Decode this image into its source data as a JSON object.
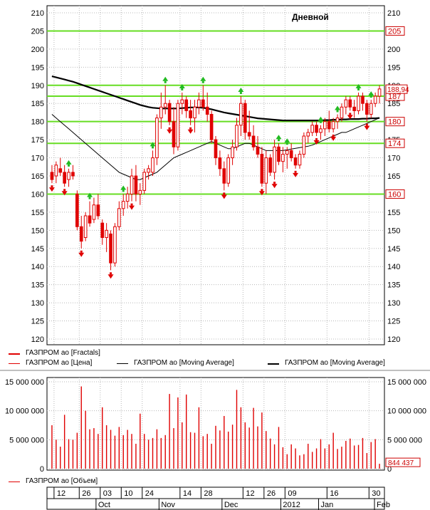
{
  "chart_data": {
    "type": "line",
    "title": "Дневной",
    "ticker": "ГАЗПРОМ ао",
    "price_axis": {
      "min": 120,
      "max": 210,
      "ticks": [
        120,
        125,
        130,
        135,
        140,
        145,
        150,
        155,
        160,
        165,
        170,
        175,
        180,
        185,
        190,
        195,
        200,
        205,
        210
      ]
    },
    "horizontal_levels": [
      {
        "value": 205,
        "label": "205"
      },
      {
        "value": 190,
        "label": ""
      },
      {
        "value": 187,
        "label": "187"
      },
      {
        "value": 180,
        "label": "180"
      },
      {
        "value": 174,
        "label": "174"
      },
      {
        "value": 160,
        "label": "160"
      }
    ],
    "last_price": {
      "value": 188.94,
      "label": "188,94"
    },
    "candles": [
      {
        "o": 166,
        "h": 168,
        "l": 163,
        "c": 164
      },
      {
        "o": 165,
        "h": 169,
        "l": 163,
        "c": 168
      },
      {
        "o": 167,
        "h": 170,
        "l": 165,
        "c": 166
      },
      {
        "o": 166,
        "h": 168,
        "l": 162,
        "c": 163
      },
      {
        "o": 164,
        "h": 167,
        "l": 162,
        "c": 166
      },
      {
        "o": 166,
        "h": 168,
        "l": 164,
        "c": 165
      },
      {
        "o": 160,
        "h": 161,
        "l": 150,
        "c": 151
      },
      {
        "o": 151,
        "h": 154,
        "l": 145,
        "c": 147
      },
      {
        "o": 148,
        "h": 155,
        "l": 147,
        "c": 154
      },
      {
        "o": 154,
        "h": 158,
        "l": 151,
        "c": 152
      },
      {
        "o": 153,
        "h": 159,
        "l": 152,
        "c": 157
      },
      {
        "o": 157,
        "h": 160,
        "l": 153,
        "c": 154
      },
      {
        "o": 152,
        "h": 153,
        "l": 146,
        "c": 148
      },
      {
        "o": 148,
        "h": 152,
        "l": 144,
        "c": 150
      },
      {
        "o": 149,
        "h": 150,
        "l": 139,
        "c": 141
      },
      {
        "o": 141,
        "h": 152,
        "l": 140,
        "c": 151
      },
      {
        "o": 151,
        "h": 158,
        "l": 150,
        "c": 156
      },
      {
        "o": 156,
        "h": 160,
        "l": 154,
        "c": 158
      },
      {
        "o": 158,
        "h": 162,
        "l": 156,
        "c": 160
      },
      {
        "o": 160,
        "h": 167,
        "l": 158,
        "c": 165
      },
      {
        "o": 165,
        "h": 168,
        "l": 158,
        "c": 160
      },
      {
        "o": 160,
        "h": 163,
        "l": 157,
        "c": 161
      },
      {
        "o": 161,
        "h": 167,
        "l": 160,
        "c": 166
      },
      {
        "o": 166,
        "h": 168,
        "l": 164,
        "c": 167
      },
      {
        "o": 166,
        "h": 172,
        "l": 165,
        "c": 170
      },
      {
        "o": 170,
        "h": 182,
        "l": 168,
        "c": 181
      },
      {
        "o": 181,
        "h": 188,
        "l": 178,
        "c": 184
      },
      {
        "o": 184,
        "h": 190,
        "l": 182,
        "c": 185
      },
      {
        "o": 185,
        "h": 186,
        "l": 179,
        "c": 180
      },
      {
        "o": 180,
        "h": 184,
        "l": 171,
        "c": 173
      },
      {
        "o": 173,
        "h": 186,
        "l": 172,
        "c": 185
      },
      {
        "o": 185,
        "h": 188,
        "l": 182,
        "c": 186
      },
      {
        "o": 186,
        "h": 187,
        "l": 181,
        "c": 183
      },
      {
        "o": 183,
        "h": 186,
        "l": 179,
        "c": 181
      },
      {
        "o": 181,
        "h": 186,
        "l": 177,
        "c": 184
      },
      {
        "o": 184,
        "h": 188,
        "l": 182,
        "c": 186
      },
      {
        "o": 186,
        "h": 190,
        "l": 183,
        "c": 184
      },
      {
        "o": 184,
        "h": 188,
        "l": 180,
        "c": 182
      },
      {
        "o": 182,
        "h": 183,
        "l": 174,
        "c": 175
      },
      {
        "o": 175,
        "h": 176,
        "l": 168,
        "c": 170
      },
      {
        "o": 170,
        "h": 172,
        "l": 165,
        "c": 167
      },
      {
        "o": 167,
        "h": 169,
        "l": 161,
        "c": 163
      },
      {
        "o": 163,
        "h": 171,
        "l": 162,
        "c": 170
      },
      {
        "o": 170,
        "h": 175,
        "l": 168,
        "c": 173
      },
      {
        "o": 173,
        "h": 181,
        "l": 172,
        "c": 179
      },
      {
        "o": 179,
        "h": 187,
        "l": 176,
        "c": 185
      },
      {
        "o": 185,
        "h": 186,
        "l": 175,
        "c": 177
      },
      {
        "o": 177,
        "h": 183,
        "l": 175,
        "c": 176
      },
      {
        "o": 176,
        "h": 179,
        "l": 172,
        "c": 173
      },
      {
        "o": 173,
        "h": 176,
        "l": 170,
        "c": 171
      },
      {
        "o": 171,
        "h": 173,
        "l": 162,
        "c": 163
      },
      {
        "o": 163,
        "h": 172,
        "l": 160,
        "c": 170
      },
      {
        "o": 170,
        "h": 171,
        "l": 165,
        "c": 166
      },
      {
        "o": 166,
        "h": 175,
        "l": 164,
        "c": 173
      },
      {
        "o": 173,
        "h": 174,
        "l": 168,
        "c": 169
      },
      {
        "o": 169,
        "h": 173,
        "l": 166,
        "c": 171
      },
      {
        "o": 171,
        "h": 173,
        "l": 167,
        "c": 172
      },
      {
        "o": 172,
        "h": 174,
        "l": 169,
        "c": 170
      },
      {
        "o": 170,
        "h": 171,
        "l": 167,
        "c": 168
      },
      {
        "o": 168,
        "h": 172,
        "l": 167,
        "c": 171
      },
      {
        "o": 171,
        "h": 177,
        "l": 170,
        "c": 176
      },
      {
        "o": 176,
        "h": 178,
        "l": 174,
        "c": 177
      },
      {
        "o": 177,
        "h": 180,
        "l": 176,
        "c": 179
      },
      {
        "o": 179,
        "h": 180,
        "l": 176,
        "c": 177
      },
      {
        "o": 177,
        "h": 179,
        "l": 175,
        "c": 178
      },
      {
        "o": 178,
        "h": 181,
        "l": 176,
        "c": 180
      },
      {
        "o": 180,
        "h": 183,
        "l": 177,
        "c": 178
      },
      {
        "o": 178,
        "h": 181,
        "l": 177,
        "c": 180
      },
      {
        "o": 180,
        "h": 182,
        "l": 178,
        "c": 181
      },
      {
        "o": 181,
        "h": 185,
        "l": 180,
        "c": 184
      },
      {
        "o": 184,
        "h": 187,
        "l": 182,
        "c": 186
      },
      {
        "o": 186,
        "h": 187,
        "l": 183,
        "c": 184
      },
      {
        "o": 184,
        "h": 186,
        "l": 181,
        "c": 183
      },
      {
        "o": 183,
        "h": 188,
        "l": 182,
        "c": 187
      },
      {
        "o": 187,
        "h": 188,
        "l": 183,
        "c": 185
      },
      {
        "o": 185,
        "h": 186,
        "l": 180,
        "c": 182
      },
      {
        "o": 182,
        "h": 186,
        "l": 181,
        "c": 185
      },
      {
        "o": 185,
        "h": 188,
        "l": 184,
        "c": 187
      },
      {
        "o": 187,
        "h": 190,
        "l": 185,
        "c": 189
      }
    ],
    "fractals_up": [
      4,
      9,
      17,
      24,
      27,
      31,
      36,
      45,
      54,
      56,
      64,
      68,
      73,
      76
    ],
    "fractals_down": [
      0,
      3,
      7,
      14,
      19,
      28,
      33,
      41,
      50,
      53,
      58,
      63,
      67,
      71,
      75
    ],
    "ma_fast": [
      182,
      181,
      180,
      179,
      178,
      177,
      176,
      175,
      174,
      173,
      172,
      171,
      170,
      169,
      168,
      167,
      166,
      165.5,
      165,
      164.5,
      164,
      164,
      164.5,
      165,
      165.5,
      166,
      167,
      168,
      169,
      170,
      170.5,
      171,
      171.5,
      172,
      172.5,
      173,
      173.5,
      174,
      174.5,
      174,
      173.5,
      173,
      172.5,
      172.5,
      173,
      173.5,
      174,
      174,
      173.5,
      173,
      172.5,
      172,
      172,
      172,
      172,
      172,
      172.2,
      172.4,
      172.6,
      172.8,
      173,
      173.2,
      173.5,
      174,
      174.5,
      175,
      175.5,
      176,
      176.5,
      177,
      177,
      177.5,
      178,
      178.5,
      179,
      179.5,
      180,
      180.5,
      181
    ],
    "ma_slow": [
      192.5,
      192.2,
      191.9,
      191.6,
      191.3,
      191,
      190.6,
      190.2,
      189.8,
      189.4,
      189,
      188.6,
      188.2,
      187.8,
      187.4,
      187,
      186.6,
      186.2,
      185.8,
      185.4,
      185,
      184.6,
      184.3,
      184,
      183.8,
      183.7,
      183.6,
      183.6,
      183.6,
      183.6,
      183.6,
      183.7,
      183.8,
      183.9,
      183.9,
      183.9,
      183.8,
      183.6,
      183.4,
      183.1,
      182.8,
      182.5,
      182.3,
      182.1,
      181.9,
      181.7,
      181.5,
      181.3,
      181.1,
      180.9,
      180.8,
      180.7,
      180.6,
      180.5,
      180.4,
      180.3,
      180.3,
      180.3,
      180.3,
      180.3,
      180.3,
      180.3,
      180.3,
      180.3,
      180.3,
      180.4,
      180.4,
      180.5,
      180.5,
      180.6,
      180.6,
      180.7,
      180.7,
      180.7,
      180.8,
      180.8,
      180.9,
      180.9,
      181
    ],
    "volume": {
      "axis_ticks": [
        0,
        5000000,
        10000000,
        15000000
      ],
      "axis_tick_labels": [
        "0",
        "5 000 000",
        "10 000 000",
        "15 000 000"
      ],
      "last_value_label": "844 437",
      "values": [
        7500000,
        5000000,
        3800000,
        9300000,
        5100000,
        5000000,
        6200000,
        14200000,
        10000000,
        6800000,
        7000000,
        6000000,
        10600000,
        7500000,
        6700000,
        5700000,
        7200000,
        5800000,
        6700000,
        6000000,
        4300000,
        9500000,
        6000000,
        5000000,
        5300000,
        6800000,
        5300000,
        5800000,
        12900000,
        7000000,
        12300000,
        8000000,
        12800000,
        6300000,
        6200000,
        10600000,
        5600000,
        6000000,
        4300000,
        7400000,
        6600000,
        9100000,
        6400000,
        7600000,
        13600000,
        10600000,
        8000000,
        7100000,
        10500000,
        7300000,
        9700000,
        6500000,
        5200000,
        4200000,
        7200000,
        3700000,
        2500000,
        4200000,
        3500000,
        2300000,
        2500000,
        4300000,
        2900000,
        3500000,
        5100000,
        3500000,
        4200000,
        6200000,
        3400000,
        3800000,
        4800000,
        5200000,
        4000000,
        4100000,
        5300000,
        2700000,
        4600000,
        5100000,
        844437
      ]
    },
    "x_axis": {
      "day_ticks": [
        {
          "i": 1,
          "label": "12"
        },
        {
          "i": 7,
          "label": "26"
        },
        {
          "i": 12,
          "label": "03"
        },
        {
          "i": 17,
          "label": "10"
        },
        {
          "i": 22,
          "label": "24"
        },
        {
          "i": 31,
          "label": "14"
        },
        {
          "i": 36,
          "label": "28"
        },
        {
          "i": 46,
          "label": "12"
        },
        {
          "i": 51,
          "label": "26"
        },
        {
          "i": 56,
          "label": "09"
        },
        {
          "i": 66,
          "label": "16"
        },
        {
          "i": 76,
          "label": "30"
        }
      ],
      "month_ticks": [
        {
          "i": 11,
          "label": "Oct"
        },
        {
          "i": 26,
          "label": "Nov"
        },
        {
          "i": 41,
          "label": "Dec"
        },
        {
          "i": 55,
          "label": "2012"
        },
        {
          "i": 64,
          "label": "Jan"
        },
        {
          "i": 78,
          "label": "Feb"
        }
      ]
    }
  },
  "legend_top": [
    {
      "label": "ГАЗПРОМ ао [Fractals]",
      "color": "#e00000",
      "weight": 2
    },
    {
      "label": "ГАЗПРОМ ао [Цена]",
      "color": "#e00000",
      "weight": 1
    },
    {
      "label": "ГАЗПРОМ ао [Moving Average]",
      "color": "#000000",
      "weight": 1
    },
    {
      "label": "ГАЗПРОМ ао [Moving Average]",
      "color": "#000000",
      "weight": 2
    }
  ],
  "legend_bottom": [
    {
      "label": "ГАЗПРОМ ао [Объем]",
      "color": "#e00000",
      "weight": 1
    }
  ],
  "colors": {
    "candle": "#e00000",
    "level_line": "#66dd22",
    "fractal_up": "#22bb22",
    "fractal_down": "#e00000",
    "grid": "#b8b8b8",
    "volume": "#e00000"
  }
}
